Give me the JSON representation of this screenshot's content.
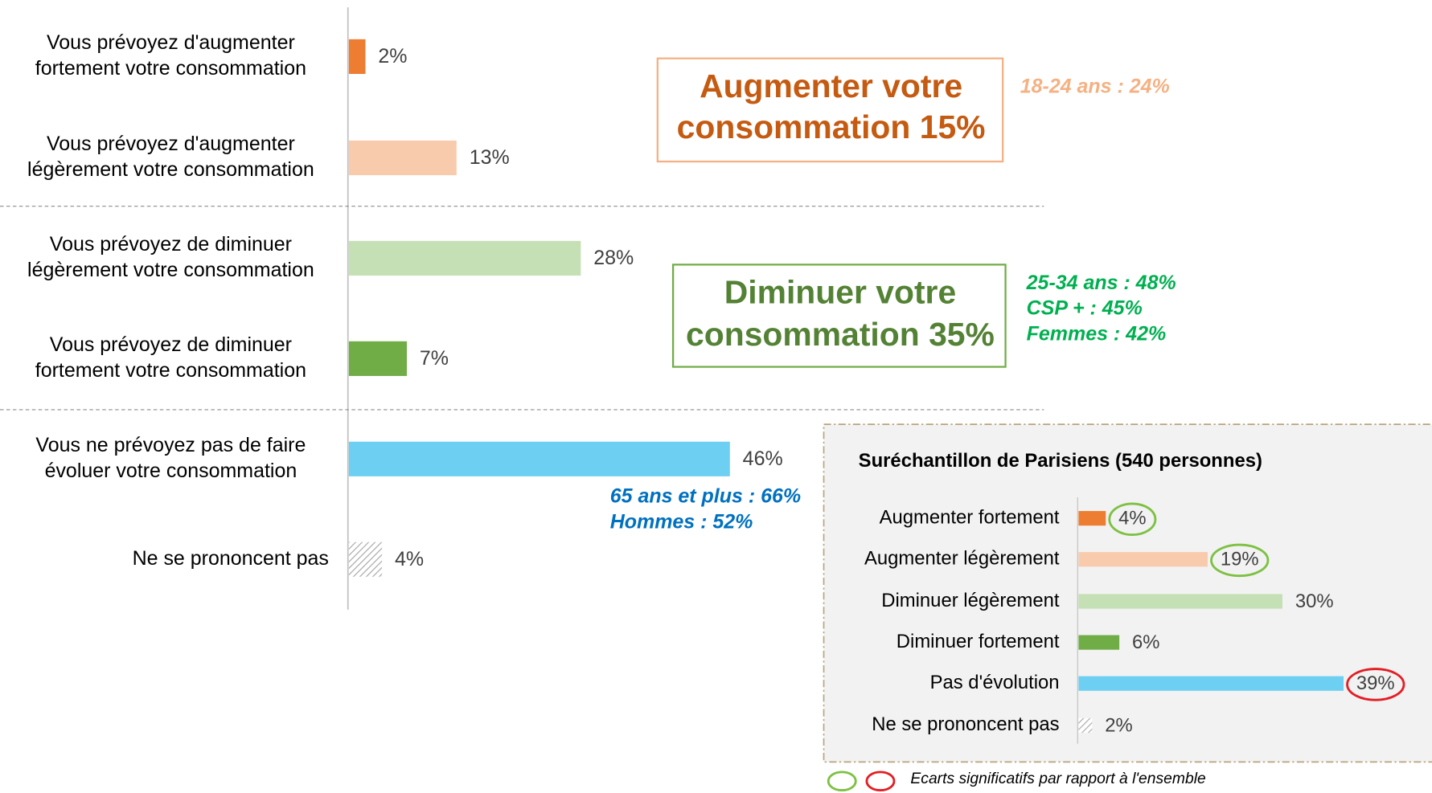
{
  "chart_data": [
    {
      "type": "bar",
      "orientation": "horizontal",
      "categories": [
        [
          "Vous prévoyez d'augmenter",
          "fortement votre consommation"
        ],
        [
          "Vous prévoyez d'augmenter",
          "légèrement votre consommation"
        ],
        [
          "Vous prévoyez de diminuer",
          "légèrement votre consommation"
        ],
        [
          "Vous prévoyez de diminuer",
          "fortement votre consommation"
        ],
        [
          "Vous ne prévoyez pas de faire",
          "évoluer votre consommation"
        ],
        [
          "Ne se prononcent pas"
        ]
      ],
      "values": [
        2,
        13,
        28,
        7,
        46,
        4
      ],
      "value_labels": [
        "2%",
        "13%",
        "28%",
        "7%",
        "46%",
        "4%"
      ],
      "colors": [
        "#ED7D31",
        "#F8CBAD",
        "#C5E0B4",
        "#70AD47",
        "#6DCFF2",
        "#A6A6A6"
      ],
      "hatched": [
        false,
        false,
        false,
        false,
        false,
        true
      ],
      "annotations": [
        {
          "lines": [
            "Augmenter votre",
            "consommation 15%"
          ],
          "color": "#C55A11",
          "border": "#F4B183"
        },
        {
          "lines": [
            "18-24 ans : 24%"
          ],
          "color": "#F4B183"
        },
        {
          "lines": [
            "Diminuer votre",
            "consommation 35%"
          ],
          "color": "#548235",
          "border": "#70AD47"
        },
        {
          "lines": [
            "25-34 ans : 48%",
            "CSP + : 45%",
            "Femmes : 42%"
          ],
          "color": "#00B050"
        },
        {
          "lines": [
            "65 ans et plus : 66%",
            "Hommes : 52%"
          ],
          "color": "#0070C0"
        }
      ]
    },
    {
      "type": "bar",
      "orientation": "horizontal",
      "title": "Suréchantillon de Parisiens (540 personnes)",
      "categories": [
        "Augmenter fortement",
        "Augmenter légèrement",
        "Diminuer légèrement",
        "Diminuer fortement",
        "Pas d'évolution",
        "Ne se prononcent pas"
      ],
      "values": [
        4,
        19,
        30,
        6,
        39,
        2
      ],
      "value_labels": [
        "4%",
        "19%",
        "30%",
        "6%",
        "39%",
        "2%"
      ],
      "colors": [
        "#ED7D31",
        "#F8CBAD",
        "#C5E0B4",
        "#70AD47",
        "#6DCFF2",
        "#A6A6A6"
      ],
      "hatched": [
        false,
        false,
        false,
        false,
        false,
        true
      ],
      "circles": [
        "#7DC142",
        "#7DC142",
        null,
        null,
        "#E31E24",
        null
      ],
      "legend": {
        "colors": [
          "#7DC142",
          "#E31E24"
        ],
        "text": "Ecarts significatifs par rapport à l'ensemble"
      }
    }
  ]
}
